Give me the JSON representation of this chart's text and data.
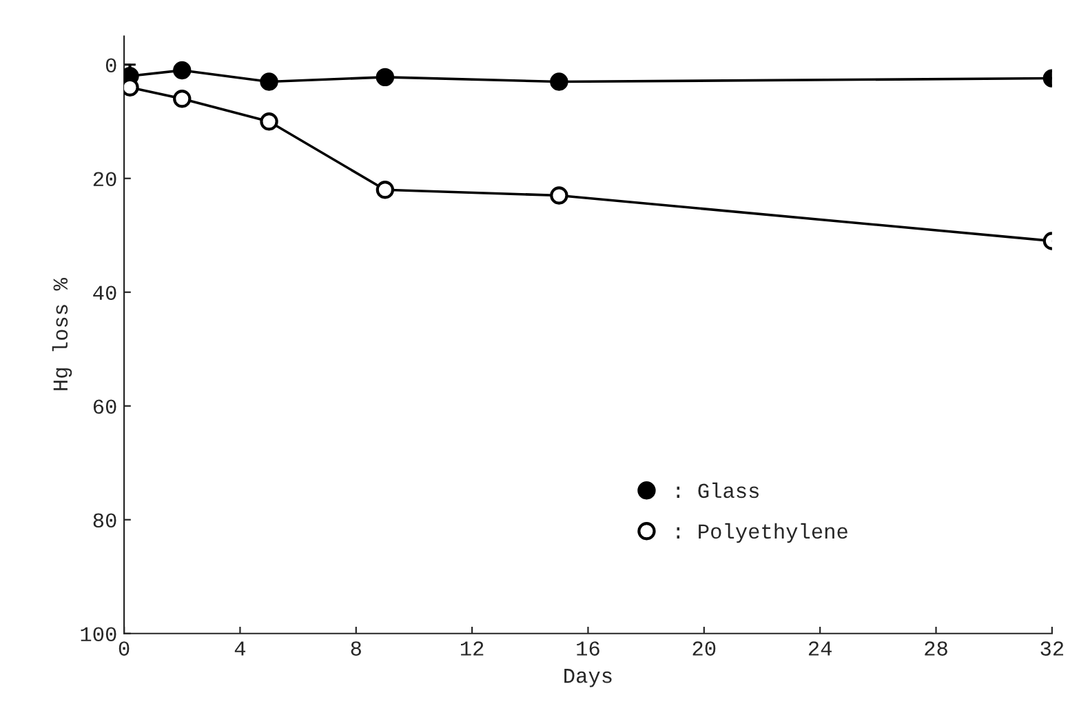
{
  "chart_data": {
    "type": "line",
    "xlabel": "Days",
    "ylabel": "Hg loss %",
    "xlim": [
      0,
      32
    ],
    "xticks": [
      0,
      4,
      8,
      12,
      16,
      20,
      24,
      28,
      32
    ],
    "ylim": [
      100,
      -5
    ],
    "yticks": [
      0,
      20,
      40,
      60,
      80,
      100
    ],
    "grid": false,
    "legend": "bottom right",
    "line_style": "solid",
    "series": [
      {
        "name": ": Glass",
        "color": "#000000",
        "marker": "circle",
        "x": [
          0.2,
          2,
          5,
          9,
          15,
          32
        ],
        "values": [
          2,
          1,
          3,
          2.2,
          3,
          2.4
        ],
        "errors": [
          2,
          null,
          null,
          null,
          null,
          null
        ]
      },
      {
        "name": ": Polyethylene",
        "color": "#000000",
        "marker": "circle",
        "x": [
          0.2,
          2,
          5,
          9,
          15,
          32
        ],
        "values": [
          4,
          6,
          10,
          22,
          23,
          31
        ]
      }
    ]
  }
}
